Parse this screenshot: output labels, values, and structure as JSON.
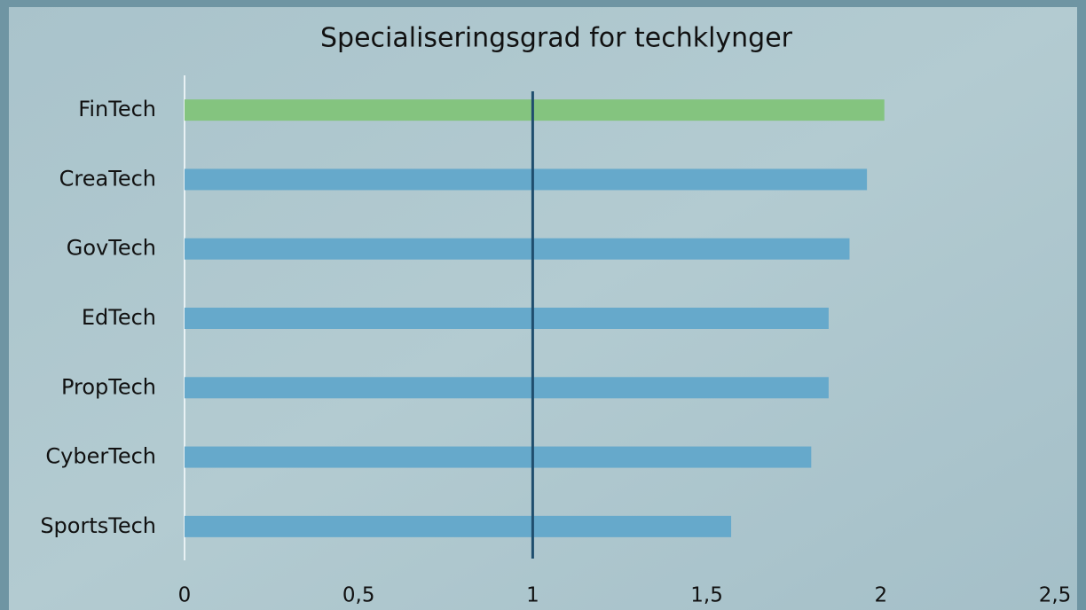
{
  "chart_data": {
    "type": "hbar",
    "title": "Specialiseringsgrad for techklynger",
    "categories": [
      "FinTech",
      "CreaTech",
      "GovTech",
      "EdTech",
      "PropTech",
      "CyberTech",
      "SportsTech"
    ],
    "values": [
      2.01,
      1.96,
      1.91,
      1.85,
      1.85,
      1.8,
      1.57
    ],
    "colors": [
      "#84c47f",
      "#66a9cb",
      "#66a9cb",
      "#66a9cb",
      "#66a9cb",
      "#66a9cb",
      "#66a9cb"
    ],
    "xlim": [
      0,
      2.5
    ],
    "xticks": [
      0,
      {
        "value": 0.5,
        "label": "0,5"
      },
      1,
      {
        "value": 1.5,
        "label": "1,5"
      },
      2,
      {
        "value": 2.5,
        "label": "2,5"
      }
    ],
    "reference_line": 1,
    "reference_line_color": "#1f4e6e",
    "grid": false
  }
}
